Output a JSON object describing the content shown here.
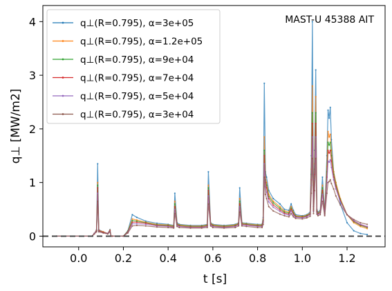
{
  "chart_data": {
    "type": "line",
    "annotation": "MAST-U 45388 AIT",
    "xlabel": "t [s]",
    "ylabel": "q⊥ [MW/m2]",
    "xlim": [
      -0.16,
      1.37
    ],
    "ylim": [
      -0.2,
      4.3
    ],
    "xticks": [
      0.0,
      0.2,
      0.4,
      0.6,
      0.8,
      1.0,
      1.2
    ],
    "yticks": [
      0,
      1,
      2,
      3,
      4
    ],
    "reference_line": {
      "y": 0,
      "style": "dashed",
      "color": "#444444"
    },
    "legend_position": "upper-left",
    "colors": [
      "#1f77b4",
      "#ff7f0e",
      "#2ca02c",
      "#d62728",
      "#9467bd",
      "#8c564b"
    ],
    "series": [
      {
        "name": "q⊥(R=0.795), α=3e+05",
        "x": [
          -0.1,
          0.06,
          0.07,
          0.08,
          0.085,
          0.09,
          0.11,
          0.13,
          0.14,
          0.145,
          0.15,
          0.2,
          0.22,
          0.24,
          0.26,
          0.3,
          0.35,
          0.4,
          0.425,
          0.43,
          0.44,
          0.45,
          0.5,
          0.55,
          0.575,
          0.58,
          0.59,
          0.6,
          0.65,
          0.7,
          0.715,
          0.72,
          0.73,
          0.75,
          0.8,
          0.82,
          0.825,
          0.83,
          0.835,
          0.84,
          0.85,
          0.87,
          0.9,
          0.92,
          0.94,
          0.95,
          0.96,
          0.97,
          1.0,
          1.02,
          1.035,
          1.04,
          1.045,
          1.05,
          1.055,
          1.06,
          1.065,
          1.07,
          1.08,
          1.09,
          1.1,
          1.11,
          1.115,
          1.12,
          1.125,
          1.13,
          1.14,
          1.15,
          1.17,
          1.2,
          1.23,
          1.26,
          1.29
        ],
        "y": [
          0.0,
          0.0,
          0.05,
          0.12,
          1.35,
          0.12,
          0.08,
          0.05,
          0.12,
          0.0,
          0.0,
          0.0,
          0.1,
          0.4,
          0.35,
          0.28,
          0.24,
          0.22,
          0.2,
          0.8,
          0.25,
          0.22,
          0.2,
          0.2,
          0.22,
          1.2,
          0.25,
          0.22,
          0.2,
          0.22,
          0.25,
          0.9,
          0.25,
          0.24,
          0.22,
          0.22,
          0.35,
          2.85,
          1.2,
          1.1,
          0.85,
          0.7,
          0.6,
          0.5,
          0.48,
          0.6,
          0.48,
          0.4,
          0.38,
          0.4,
          0.45,
          1.5,
          4.0,
          0.55,
          1.6,
          3.1,
          0.5,
          0.45,
          0.48,
          1.1,
          0.45,
          1.5,
          2.35,
          2.2,
          2.4,
          1.8,
          1.2,
          1.0,
          0.6,
          0.25,
          0.1,
          0.05,
          0.03
        ]
      },
      {
        "name": "q⊥(R=0.795), α=1.2e+05",
        "x": [
          -0.1,
          0.06,
          0.07,
          0.08,
          0.085,
          0.09,
          0.11,
          0.13,
          0.14,
          0.145,
          0.15,
          0.2,
          0.22,
          0.24,
          0.26,
          0.3,
          0.35,
          0.4,
          0.425,
          0.43,
          0.44,
          0.45,
          0.5,
          0.55,
          0.575,
          0.58,
          0.59,
          0.6,
          0.65,
          0.7,
          0.715,
          0.72,
          0.73,
          0.75,
          0.8,
          0.82,
          0.825,
          0.83,
          0.835,
          0.84,
          0.85,
          0.87,
          0.9,
          0.92,
          0.94,
          0.95,
          0.96,
          0.97,
          1.0,
          1.02,
          1.035,
          1.04,
          1.045,
          1.05,
          1.055,
          1.06,
          1.065,
          1.07,
          1.08,
          1.09,
          1.1,
          1.11,
          1.115,
          1.12,
          1.125,
          1.13,
          1.14,
          1.15,
          1.17,
          1.2,
          1.23,
          1.26,
          1.29
        ],
        "y": [
          0.0,
          0.0,
          0.05,
          0.11,
          1.0,
          0.11,
          0.08,
          0.05,
          0.11,
          0.0,
          0.0,
          0.0,
          0.09,
          0.32,
          0.3,
          0.26,
          0.22,
          0.21,
          0.19,
          0.65,
          0.23,
          0.21,
          0.19,
          0.19,
          0.21,
          0.95,
          0.24,
          0.21,
          0.19,
          0.21,
          0.24,
          0.7,
          0.24,
          0.23,
          0.21,
          0.21,
          0.32,
          1.85,
          1.1,
          1.0,
          0.78,
          0.65,
          0.55,
          0.47,
          0.45,
          0.55,
          0.45,
          0.38,
          0.37,
          0.39,
          0.43,
          1.25,
          2.8,
          0.52,
          1.35,
          2.6,
          0.48,
          0.43,
          0.46,
          0.95,
          0.43,
          1.3,
          1.95,
          1.85,
          1.9,
          1.6,
          1.2,
          1.0,
          0.7,
          0.4,
          0.25,
          0.18,
          0.14
        ]
      },
      {
        "name": "q⊥(R=0.795), α=9e+04",
        "x": [
          -0.1,
          0.06,
          0.07,
          0.08,
          0.085,
          0.09,
          0.11,
          0.13,
          0.14,
          0.145,
          0.15,
          0.2,
          0.22,
          0.24,
          0.26,
          0.3,
          0.35,
          0.4,
          0.425,
          0.43,
          0.44,
          0.45,
          0.5,
          0.55,
          0.575,
          0.58,
          0.59,
          0.6,
          0.65,
          0.7,
          0.715,
          0.72,
          0.73,
          0.75,
          0.8,
          0.82,
          0.825,
          0.83,
          0.835,
          0.84,
          0.85,
          0.87,
          0.9,
          0.92,
          0.94,
          0.95,
          0.96,
          0.97,
          1.0,
          1.02,
          1.035,
          1.04,
          1.045,
          1.05,
          1.055,
          1.06,
          1.065,
          1.07,
          1.08,
          1.09,
          1.1,
          1.11,
          1.115,
          1.12,
          1.125,
          1.13,
          1.14,
          1.15,
          1.17,
          1.2,
          1.23,
          1.26,
          1.29
        ],
        "y": [
          0.0,
          0.0,
          0.05,
          0.1,
          0.95,
          0.1,
          0.07,
          0.05,
          0.1,
          0.0,
          0.0,
          0.0,
          0.09,
          0.29,
          0.28,
          0.25,
          0.21,
          0.2,
          0.18,
          0.6,
          0.22,
          0.2,
          0.18,
          0.18,
          0.2,
          0.9,
          0.23,
          0.2,
          0.18,
          0.2,
          0.23,
          0.65,
          0.23,
          0.22,
          0.2,
          0.2,
          0.3,
          1.6,
          1.05,
          0.95,
          0.74,
          0.62,
          0.52,
          0.45,
          0.43,
          0.52,
          0.43,
          0.37,
          0.36,
          0.38,
          0.42,
          1.15,
          2.3,
          0.5,
          1.25,
          2.3,
          0.47,
          0.42,
          0.45,
          0.9,
          0.42,
          1.2,
          1.75,
          1.7,
          1.75,
          1.5,
          1.15,
          0.95,
          0.68,
          0.4,
          0.27,
          0.2,
          0.16
        ]
      },
      {
        "name": "q⊥(R=0.795), α=7e+04",
        "x": [
          -0.1,
          0.06,
          0.07,
          0.08,
          0.085,
          0.09,
          0.11,
          0.13,
          0.14,
          0.145,
          0.15,
          0.2,
          0.22,
          0.24,
          0.26,
          0.3,
          0.35,
          0.4,
          0.425,
          0.43,
          0.44,
          0.45,
          0.5,
          0.55,
          0.575,
          0.58,
          0.59,
          0.6,
          0.65,
          0.7,
          0.715,
          0.72,
          0.73,
          0.75,
          0.8,
          0.82,
          0.825,
          0.83,
          0.835,
          0.84,
          0.85,
          0.87,
          0.9,
          0.92,
          0.94,
          0.95,
          0.96,
          0.97,
          1.0,
          1.02,
          1.035,
          1.04,
          1.045,
          1.05,
          1.055,
          1.06,
          1.065,
          1.07,
          1.08,
          1.09,
          1.1,
          1.11,
          1.115,
          1.12,
          1.125,
          1.13,
          1.14,
          1.15,
          1.17,
          1.2,
          1.23,
          1.26,
          1.29
        ],
        "y": [
          0.0,
          0.0,
          0.05,
          0.1,
          0.9,
          0.1,
          0.07,
          0.05,
          0.1,
          0.0,
          0.0,
          0.0,
          0.08,
          0.26,
          0.26,
          0.24,
          0.2,
          0.19,
          0.17,
          0.55,
          0.21,
          0.19,
          0.17,
          0.17,
          0.19,
          0.85,
          0.22,
          0.19,
          0.17,
          0.19,
          0.22,
          0.6,
          0.22,
          0.21,
          0.19,
          0.19,
          0.28,
          1.5,
          1.0,
          0.9,
          0.7,
          0.58,
          0.49,
          0.43,
          0.41,
          0.5,
          0.41,
          0.36,
          0.35,
          0.37,
          0.41,
          1.05,
          2.1,
          0.48,
          1.15,
          2.1,
          0.46,
          0.41,
          0.44,
          0.85,
          0.41,
          1.1,
          1.6,
          1.55,
          1.6,
          1.4,
          1.1,
          0.92,
          0.66,
          0.4,
          0.28,
          0.21,
          0.17
        ]
      },
      {
        "name": "q⊥(R=0.795), α=5e+04",
        "x": [
          -0.1,
          0.06,
          0.07,
          0.08,
          0.085,
          0.09,
          0.11,
          0.13,
          0.14,
          0.145,
          0.15,
          0.2,
          0.22,
          0.24,
          0.26,
          0.3,
          0.35,
          0.4,
          0.425,
          0.43,
          0.44,
          0.45,
          0.5,
          0.55,
          0.575,
          0.58,
          0.59,
          0.6,
          0.65,
          0.7,
          0.715,
          0.72,
          0.73,
          0.75,
          0.8,
          0.82,
          0.825,
          0.83,
          0.835,
          0.84,
          0.85,
          0.87,
          0.9,
          0.92,
          0.94,
          0.95,
          0.96,
          0.97,
          1.0,
          1.02,
          1.035,
          1.04,
          1.045,
          1.05,
          1.055,
          1.06,
          1.065,
          1.07,
          1.08,
          1.09,
          1.1,
          1.11,
          1.115,
          1.12,
          1.125,
          1.13,
          1.14,
          1.15,
          1.17,
          1.2,
          1.23,
          1.26,
          1.29
        ],
        "y": [
          0.0,
          0.0,
          0.05,
          0.09,
          0.8,
          0.09,
          0.06,
          0.05,
          0.09,
          0.0,
          0.0,
          0.0,
          0.07,
          0.23,
          0.23,
          0.22,
          0.19,
          0.18,
          0.16,
          0.5,
          0.2,
          0.18,
          0.16,
          0.16,
          0.18,
          0.75,
          0.21,
          0.18,
          0.16,
          0.18,
          0.21,
          0.55,
          0.21,
          0.2,
          0.18,
          0.18,
          0.26,
          1.35,
          0.92,
          0.82,
          0.64,
          0.54,
          0.46,
          0.41,
          0.39,
          0.47,
          0.39,
          0.35,
          0.34,
          0.36,
          0.4,
          0.95,
          1.85,
          0.46,
          1.05,
          1.85,
          0.44,
          0.4,
          0.43,
          0.78,
          0.4,
          1.0,
          1.4,
          1.38,
          1.42,
          1.28,
          1.05,
          0.88,
          0.64,
          0.4,
          0.29,
          0.22,
          0.18
        ]
      },
      {
        "name": "q⊥(R=0.795), α=3e+04",
        "x": [
          -0.1,
          0.06,
          0.07,
          0.08,
          0.085,
          0.09,
          0.11,
          0.13,
          0.14,
          0.145,
          0.15,
          0.2,
          0.22,
          0.24,
          0.26,
          0.3,
          0.35,
          0.4,
          0.425,
          0.43,
          0.44,
          0.45,
          0.5,
          0.55,
          0.575,
          0.58,
          0.59,
          0.6,
          0.65,
          0.7,
          0.715,
          0.72,
          0.73,
          0.75,
          0.8,
          0.82,
          0.825,
          0.83,
          0.835,
          0.84,
          0.85,
          0.87,
          0.9,
          0.92,
          0.94,
          0.95,
          0.96,
          0.97,
          1.0,
          1.02,
          1.035,
          1.04,
          1.045,
          1.05,
          1.055,
          1.06,
          1.065,
          1.07,
          1.08,
          1.09,
          1.1,
          1.11,
          1.115,
          1.12,
          1.125,
          1.13,
          1.14,
          1.15,
          1.17,
          1.2,
          1.23,
          1.26,
          1.29
        ],
        "y": [
          0.0,
          0.0,
          0.04,
          0.08,
          0.65,
          0.08,
          0.06,
          0.04,
          0.08,
          0.0,
          0.0,
          0.0,
          0.06,
          0.19,
          0.2,
          0.19,
          0.17,
          0.16,
          0.15,
          0.42,
          0.18,
          0.16,
          0.15,
          0.15,
          0.16,
          0.6,
          0.19,
          0.16,
          0.15,
          0.16,
          0.19,
          0.45,
          0.19,
          0.18,
          0.16,
          0.16,
          0.22,
          1.1,
          0.78,
          0.7,
          0.55,
          0.47,
          0.41,
          0.38,
          0.36,
          0.42,
          0.36,
          0.33,
          0.32,
          0.34,
          0.37,
          0.8,
          1.45,
          0.42,
          0.85,
          1.45,
          0.41,
          0.38,
          0.4,
          0.65,
          0.38,
          0.8,
          1.0,
          1.02,
          1.05,
          0.98,
          0.88,
          0.75,
          0.58,
          0.4,
          0.31,
          0.25,
          0.22
        ]
      }
    ]
  }
}
